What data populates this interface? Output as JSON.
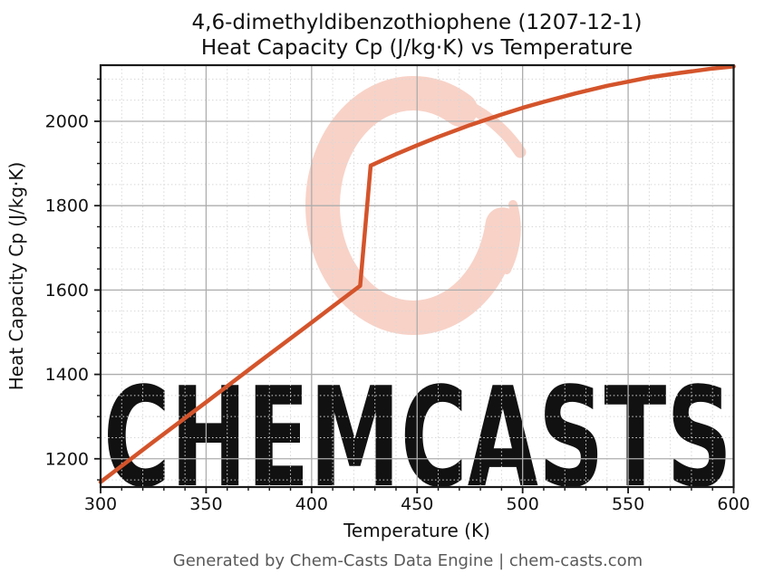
{
  "title": {
    "line1": "4,6-dimethyldibenzothiophene (1207-12-1)",
    "line2": "Heat Capacity Cp (J/kg·K) vs Temperature"
  },
  "footer": {
    "text": "Generated by Chem-Casts Data Engine | chem-casts.com"
  },
  "watermark": {
    "text": "CHEMCASTS",
    "logo": "c-brush-swoosh",
    "color": "#f8d2c7"
  },
  "chart_data": {
    "type": "line",
    "title": "4,6-dimethyldibenzothiophene (1207-12-1) Heat Capacity Cp (J/kg·K) vs Temperature",
    "xlabel": "Temperature (K)",
    "ylabel": "Heat Capacity Cp (J/kg·K)",
    "xlim": [
      300,
      600
    ],
    "ylim": [
      1133,
      2133
    ],
    "x_ticks": [
      300,
      350,
      400,
      450,
      500,
      550,
      600
    ],
    "y_ticks": [
      1200,
      1400,
      1600,
      1800,
      2000
    ],
    "x_minor_step": 10,
    "y_minor_step": 50,
    "grid": true,
    "legend": "none",
    "line_color": "#d4542b",
    "series": [
      {
        "name": "Heat Capacity Cp",
        "points": [
          [
            300,
            1145
          ],
          [
            325,
            1240
          ],
          [
            350,
            1334
          ],
          [
            375,
            1429
          ],
          [
            400,
            1523
          ],
          [
            410,
            1561
          ],
          [
            423,
            1610
          ],
          [
            428,
            1895
          ],
          [
            435,
            1911
          ],
          [
            440,
            1922
          ],
          [
            450,
            1943
          ],
          [
            460,
            1963
          ],
          [
            475,
            1991
          ],
          [
            490,
            2016
          ],
          [
            500,
            2032
          ],
          [
            510,
            2046
          ],
          [
            525,
            2066
          ],
          [
            540,
            2084
          ],
          [
            550,
            2094
          ],
          [
            560,
            2104
          ],
          [
            575,
            2115
          ],
          [
            590,
            2125
          ],
          [
            600,
            2130
          ]
        ]
      }
    ],
    "annotations": {
      "phase_transition": "step increase between 423 K (Cp 1610) and 428 K (Cp 1895)"
    }
  }
}
